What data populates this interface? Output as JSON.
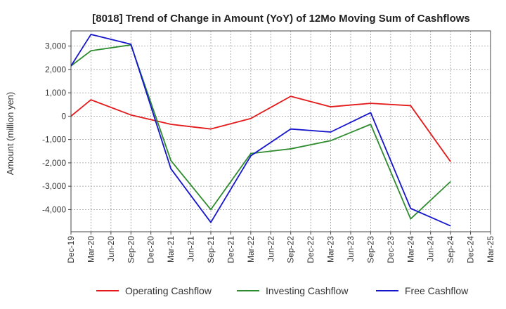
{
  "chart_data": {
    "type": "line",
    "title": "[8018]  Trend of Change in Amount (YoY) of 12Mo Moving Sum of Cashflows",
    "xlabel": "",
    "ylabel": "Amount (million yen)",
    "categories": [
      "Dec-19",
      "Mar-20",
      "Jun-20",
      "Sep-20",
      "Dec-20",
      "Mar-21",
      "Jun-21",
      "Sep-21",
      "Dec-21",
      "Mar-22",
      "Jun-22",
      "Sep-22",
      "Dec-22",
      "Mar-23",
      "Jun-23",
      "Sep-23",
      "Dec-23",
      "Mar-24",
      "Jun-24",
      "Sep-24",
      "Dec-24",
      "Mar-25"
    ],
    "yticks": [
      3000,
      2000,
      1000,
      0,
      -1000,
      -2000,
      -3000,
      -4000
    ],
    "ytick_labels": [
      "3,000",
      "2,000",
      "1,000",
      "0",
      "-1,000",
      "-2,000",
      "-3,000",
      "-4,000"
    ],
    "ylim": [
      -4950,
      3650
    ],
    "grid": true,
    "legend_position": "bottom",
    "series": [
      {
        "name": "Operating Cashflow",
        "color": "#e41a1a",
        "values": [
          0,
          700,
          null,
          50,
          null,
          -350,
          null,
          -550,
          null,
          -100,
          null,
          850,
          null,
          400,
          null,
          550,
          null,
          450,
          null,
          -1950,
          null,
          null
        ]
      },
      {
        "name": "Investing Cashflow",
        "color": "#2e8b2e",
        "values": [
          2150,
          2800,
          null,
          3050,
          null,
          -1900,
          null,
          -4000,
          null,
          -1600,
          null,
          -1400,
          null,
          -1050,
          null,
          -350,
          null,
          -4400,
          null,
          -2800,
          null,
          null
        ]
      },
      {
        "name": "Free Cashflow",
        "color": "#1515cc",
        "values": [
          2150,
          3500,
          null,
          3080,
          null,
          -2250,
          null,
          -4550,
          null,
          -1700,
          null,
          -550,
          null,
          -680,
          null,
          150,
          null,
          -3950,
          null,
          -4700,
          null,
          null
        ]
      }
    ]
  }
}
